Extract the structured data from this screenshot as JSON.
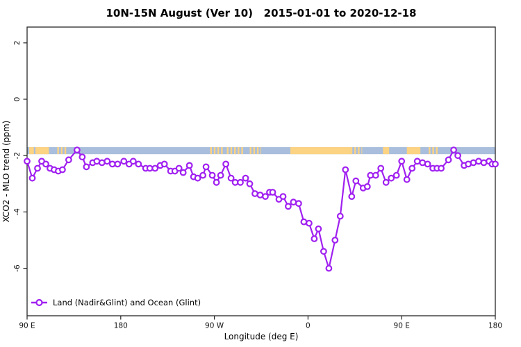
{
  "chart_data": {
    "type": "line",
    "title": "10N-15N August (Ver 10)   2015-01-01 to 2020-12-18",
    "xlabel": "Longitude (deg E)",
    "ylabel": "XCO2 - MLO trend (ppm)",
    "xlim": [
      90,
      540
    ],
    "ylim": [
      -7.7,
      2.6
    ],
    "grid": false,
    "x_ticks": [
      {
        "pos": 90,
        "label": "90 E"
      },
      {
        "pos": 180,
        "label": "180"
      },
      {
        "pos": 270,
        "label": "90 W"
      },
      {
        "pos": 360,
        "label": "0"
      },
      {
        "pos": 450,
        "label": "90 E"
      },
      {
        "pos": 540,
        "label": "180"
      }
    ],
    "y_ticks": [
      {
        "pos": 2,
        "label": "2"
      },
      {
        "pos": 0,
        "label": "0"
      },
      {
        "pos": -2,
        "label": "-2"
      },
      {
        "pos": -4,
        "label": "-4"
      },
      {
        "pos": -6,
        "label": "-6"
      }
    ],
    "legend": {
      "position": "bottom-left",
      "label": "Land (Nadir&Glint) and Ocean (Glint)"
    },
    "band": {
      "y_top": -1.7,
      "y_bottom": -1.95,
      "ocean_color": "#A9BEDC",
      "land_color": "#FBD383",
      "land_segments": [
        {
          "from": 92,
          "to": 96.5,
          "style": "solid"
        },
        {
          "from": 98,
          "to": 111,
          "style": "solid"
        },
        {
          "from": 119,
          "to": 129,
          "style": "sparse"
        },
        {
          "from": 266,
          "to": 278,
          "style": "sparse"
        },
        {
          "from": 282,
          "to": 299,
          "style": "sparse"
        },
        {
          "from": 304,
          "to": 315,
          "style": "sparse"
        },
        {
          "from": 343,
          "to": 401,
          "style": "solid"
        },
        {
          "from": 401,
          "to": 412,
          "style": "sparse"
        },
        {
          "from": 432,
          "to": 438,
          "style": "solid"
        },
        {
          "from": 455,
          "to": 468,
          "style": "solid"
        },
        {
          "from": 476,
          "to": 485,
          "style": "sparse"
        }
      ]
    },
    "series": [
      {
        "name": "Land (Nadir&Glint) and Ocean (Glint)",
        "color": "#A020F0",
        "marker": "open-circle",
        "points": [
          [
            90,
            -2.2
          ],
          [
            95,
            -2.8
          ],
          [
            100,
            -2.45
          ],
          [
            104,
            -2.2
          ],
          [
            108,
            -2.3
          ],
          [
            112,
            -2.45
          ],
          [
            116,
            -2.5
          ],
          [
            120,
            -2.55
          ],
          [
            124,
            -2.5
          ],
          [
            130,
            -2.15
          ],
          [
            138,
            -1.8
          ],
          [
            143,
            -2.05
          ],
          [
            147,
            -2.4
          ],
          [
            153,
            -2.25
          ],
          [
            157,
            -2.2
          ],
          [
            162,
            -2.25
          ],
          [
            167,
            -2.2
          ],
          [
            172,
            -2.3
          ],
          [
            177,
            -2.3
          ],
          [
            183,
            -2.2
          ],
          [
            188,
            -2.3
          ],
          [
            192,
            -2.2
          ],
          [
            197,
            -2.3
          ],
          [
            204,
            -2.45
          ],
          [
            208,
            -2.45
          ],
          [
            213,
            -2.45
          ],
          [
            218,
            -2.35
          ],
          [
            222,
            -2.3
          ],
          [
            228,
            -2.55
          ],
          [
            232,
            -2.55
          ],
          [
            236,
            -2.45
          ],
          [
            240,
            -2.6
          ],
          [
            246,
            -2.35
          ],
          [
            250,
            -2.75
          ],
          [
            254,
            -2.8
          ],
          [
            259,
            -2.7
          ],
          [
            262,
            -2.4
          ],
          [
            268,
            -2.7
          ],
          [
            272,
            -2.95
          ],
          [
            276,
            -2.7
          ],
          [
            281,
            -2.3
          ],
          [
            286,
            -2.8
          ],
          [
            290,
            -2.95
          ],
          [
            295,
            -2.95
          ],
          [
            300,
            -2.8
          ],
          [
            304,
            -3.0
          ],
          [
            309,
            -3.35
          ],
          [
            314,
            -3.4
          ],
          [
            319,
            -3.45
          ],
          [
            323,
            -3.3
          ],
          [
            326,
            -3.3
          ],
          [
            332,
            -3.55
          ],
          [
            336,
            -3.45
          ],
          [
            341,
            -3.8
          ],
          [
            346,
            -3.65
          ],
          [
            351,
            -3.7
          ],
          [
            356,
            -4.35
          ],
          [
            361,
            -4.4
          ],
          [
            366,
            -4.95
          ],
          [
            370,
            -4.6
          ],
          [
            375,
            -5.4
          ],
          [
            380,
            -6.0
          ],
          [
            386,
            -5.0
          ],
          [
            391,
            -4.15
          ],
          [
            396,
            -2.5
          ],
          [
            402,
            -3.45
          ],
          [
            406,
            -2.9
          ],
          [
            413,
            -3.15
          ],
          [
            417,
            -3.1
          ],
          [
            420,
            -2.7
          ],
          [
            425,
            -2.7
          ],
          [
            430,
            -2.45
          ],
          [
            435,
            -2.95
          ],
          [
            440,
            -2.8
          ],
          [
            445,
            -2.7
          ],
          [
            450,
            -2.2
          ],
          [
            455,
            -2.85
          ],
          [
            460,
            -2.45
          ],
          [
            465,
            -2.2
          ],
          [
            470,
            -2.25
          ],
          [
            475,
            -2.3
          ],
          [
            480,
            -2.45
          ],
          [
            484,
            -2.45
          ],
          [
            488,
            -2.45
          ],
          [
            495,
            -2.15
          ],
          [
            500,
            -1.8
          ],
          [
            504,
            -2.0
          ],
          [
            510,
            -2.35
          ],
          [
            514,
            -2.3
          ],
          [
            519,
            -2.25
          ],
          [
            524,
            -2.2
          ],
          [
            529,
            -2.25
          ],
          [
            534,
            -2.2
          ],
          [
            537,
            -2.3
          ],
          [
            540,
            -2.3
          ]
        ]
      }
    ]
  }
}
